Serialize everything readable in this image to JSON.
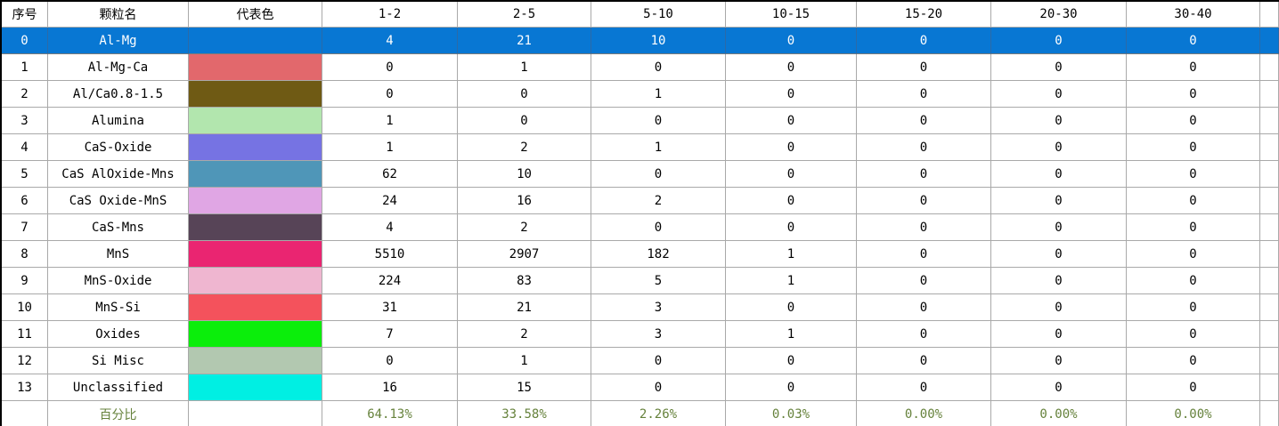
{
  "table": {
    "columns": [
      "序号",
      "颗粒名",
      "代表色",
      "1-2",
      "2-5",
      "5-10",
      "10-15",
      "15-20",
      "20-30",
      "30-40"
    ],
    "rows": [
      {
        "index": "0",
        "name": "Al-Mg",
        "color": null,
        "selected": true,
        "values": [
          "4",
          "21",
          "10",
          "0",
          "0",
          "0",
          "0"
        ]
      },
      {
        "index": "1",
        "name": "Al-Mg-Ca",
        "color": "#E2686C",
        "selected": false,
        "values": [
          "0",
          "1",
          "0",
          "0",
          "0",
          "0",
          "0"
        ]
      },
      {
        "index": "2",
        "name": "Al/Ca0.8-1.5",
        "color": "#6F5A14",
        "selected": false,
        "values": [
          "0",
          "0",
          "1",
          "0",
          "0",
          "0",
          "0"
        ]
      },
      {
        "index": "3",
        "name": "Alumina",
        "color": "#B2E6AE",
        "selected": false,
        "values": [
          "1",
          "0",
          "0",
          "0",
          "0",
          "0",
          "0"
        ]
      },
      {
        "index": "4",
        "name": "CaS-Oxide",
        "color": "#7673E3",
        "selected": false,
        "values": [
          "1",
          "2",
          "1",
          "0",
          "0",
          "0",
          "0"
        ]
      },
      {
        "index": "5",
        "name": "CaS AlOxide-Mns",
        "color": "#4F96B8",
        "selected": false,
        "values": [
          "62",
          "10",
          "0",
          "0",
          "0",
          "0",
          "0"
        ]
      },
      {
        "index": "6",
        "name": "CaS Oxide-MnS",
        "color": "#E0A6E4",
        "selected": false,
        "values": [
          "24",
          "16",
          "2",
          "0",
          "0",
          "0",
          "0"
        ]
      },
      {
        "index": "7",
        "name": "CaS-Mns",
        "color": "#574457",
        "selected": false,
        "values": [
          "4",
          "2",
          "0",
          "0",
          "0",
          "0",
          "0"
        ]
      },
      {
        "index": "8",
        "name": "MnS",
        "color": "#EA2571",
        "selected": false,
        "values": [
          "5510",
          "2907",
          "182",
          "1",
          "0",
          "0",
          "0"
        ]
      },
      {
        "index": "9",
        "name": "MnS-Oxide",
        "color": "#EFB6D0",
        "selected": false,
        "values": [
          "224",
          "83",
          "5",
          "1",
          "0",
          "0",
          "0"
        ]
      },
      {
        "index": "10",
        "name": "MnS-Si",
        "color": "#F4525C",
        "selected": false,
        "values": [
          "31",
          "21",
          "3",
          "0",
          "0",
          "0",
          "0"
        ]
      },
      {
        "index": "11",
        "name": "Oxides",
        "color": "#0BEE0B",
        "selected": false,
        "values": [
          "7",
          "2",
          "3",
          "1",
          "0",
          "0",
          "0"
        ]
      },
      {
        "index": "12",
        "name": "Si Misc",
        "color": "#B2C8B0",
        "selected": false,
        "values": [
          "0",
          "1",
          "0",
          "0",
          "0",
          "0",
          "0"
        ]
      },
      {
        "index": "13",
        "name": "Unclassified",
        "color": "#00EFE3",
        "selected": false,
        "values": [
          "16",
          "15",
          "0",
          "0",
          "0",
          "0",
          "0"
        ]
      }
    ],
    "summary": {
      "label": "百分比",
      "values": [
        "64.13%",
        "33.58%",
        "2.26%",
        "0.03%",
        "0.00%",
        "0.00%",
        "0.00%"
      ]
    },
    "colors": {
      "selection_bg": "#0877D3",
      "selection_text": "#FFFFFF",
      "summary_text": "#66823C",
      "grid_line": "#A9A9A9"
    }
  }
}
